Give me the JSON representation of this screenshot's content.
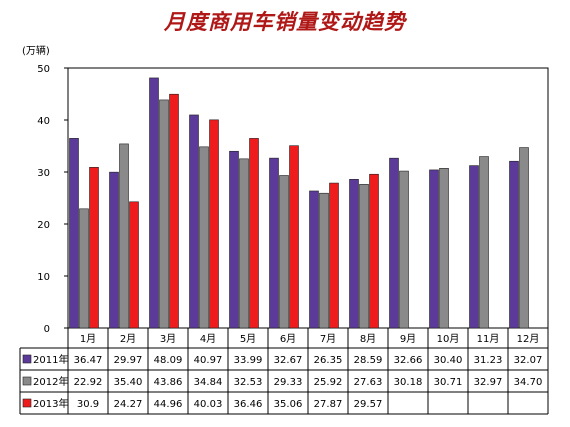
{
  "chart_data": {
    "type": "bar",
    "title": "月度商用车销量变动趋势",
    "ylabel": "(万辆)",
    "xlabel": "",
    "ylim": [
      0,
      50
    ],
    "yticks": [
      0,
      10,
      20,
      30,
      40,
      50
    ],
    "grid": false,
    "categories": [
      "1月",
      "2月",
      "3月",
      "4月",
      "5月",
      "6月",
      "7月",
      "8月",
      "9月",
      "10月",
      "11月",
      "12月"
    ],
    "series": [
      {
        "name": "2011年",
        "color": "#5b3a9a",
        "values": [
          36.47,
          29.97,
          48.09,
          40.97,
          33.99,
          32.67,
          26.35,
          28.59,
          32.66,
          30.4,
          31.23,
          32.07
        ],
        "labels": [
          "36.47",
          "29.97",
          "48.09",
          "40.97",
          "33.99",
          "32.67",
          "26.35",
          "28.59",
          "32.66",
          "30.40",
          "31.23",
          "32.07"
        ]
      },
      {
        "name": "2012年",
        "color": "#8a8a8a",
        "values": [
          22.92,
          35.4,
          43.86,
          34.84,
          32.53,
          29.33,
          25.92,
          27.63,
          30.18,
          30.71,
          32.97,
          34.7
        ],
        "labels": [
          "22.92",
          "35.40",
          "43.86",
          "34.84",
          "32.53",
          "29.33",
          "25.92",
          "27.63",
          "30.18",
          "30.71",
          "32.97",
          "34.70"
        ]
      },
      {
        "name": "2013年",
        "color": "#ee1c1c",
        "values": [
          30.9,
          24.27,
          44.96,
          40.03,
          36.46,
          35.06,
          27.87,
          29.57,
          null,
          null,
          null,
          null
        ],
        "labels": [
          "30.9",
          "24.27",
          "44.96",
          "40.03",
          "36.46",
          "35.06",
          "27.87",
          "29.57",
          "",
          "",
          "",
          ""
        ]
      }
    ]
  }
}
